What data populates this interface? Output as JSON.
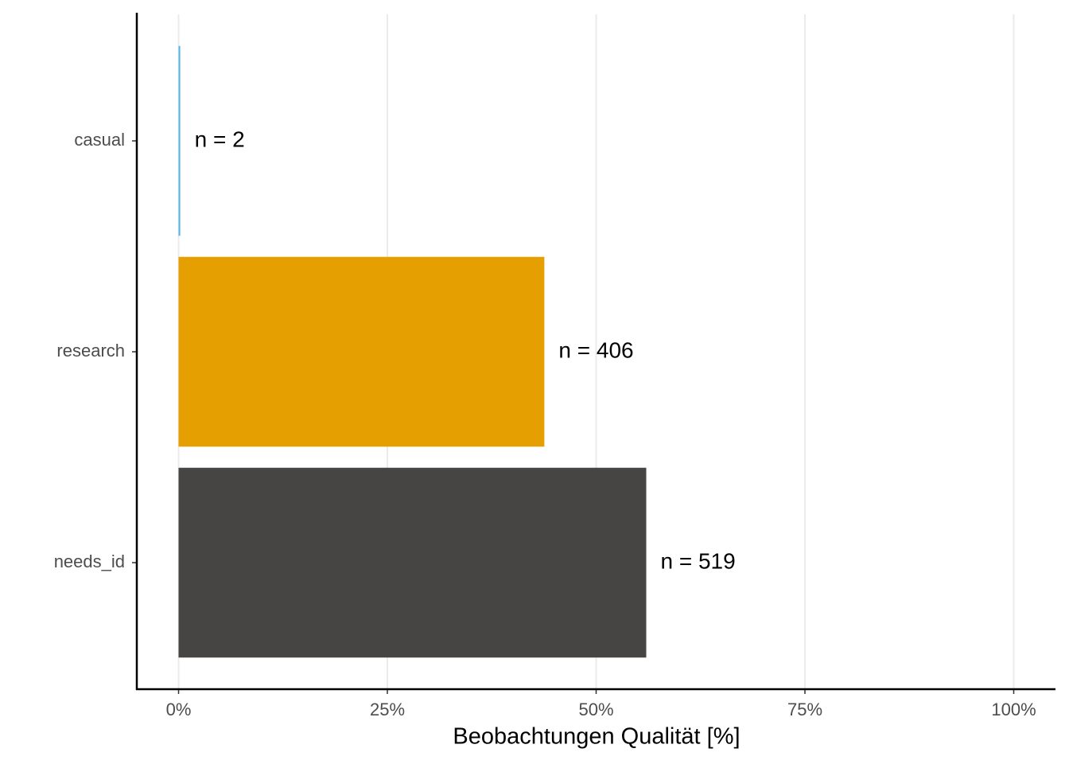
{
  "chart_data": {
    "type": "bar",
    "orientation": "horizontal",
    "categories": [
      "casual",
      "research",
      "needs_id"
    ],
    "values": [
      0.2,
      43.8,
      56.0
    ],
    "colors": [
      "#56B4E9",
      "#E69F00",
      "#464544"
    ],
    "annotations": [
      "n = 2",
      "n = 406",
      "n = 519"
    ],
    "x_label": "Beobachtungen Qualität [%]",
    "xlim": [
      -5,
      105
    ],
    "xticks": [
      {
        "value": 0,
        "label": "0%"
      },
      {
        "value": 25,
        "label": "25%"
      },
      {
        "value": 50,
        "label": "50%"
      },
      {
        "value": 75,
        "label": "75%"
      },
      {
        "value": 100,
        "label": "100%"
      }
    ],
    "grid": true
  }
}
